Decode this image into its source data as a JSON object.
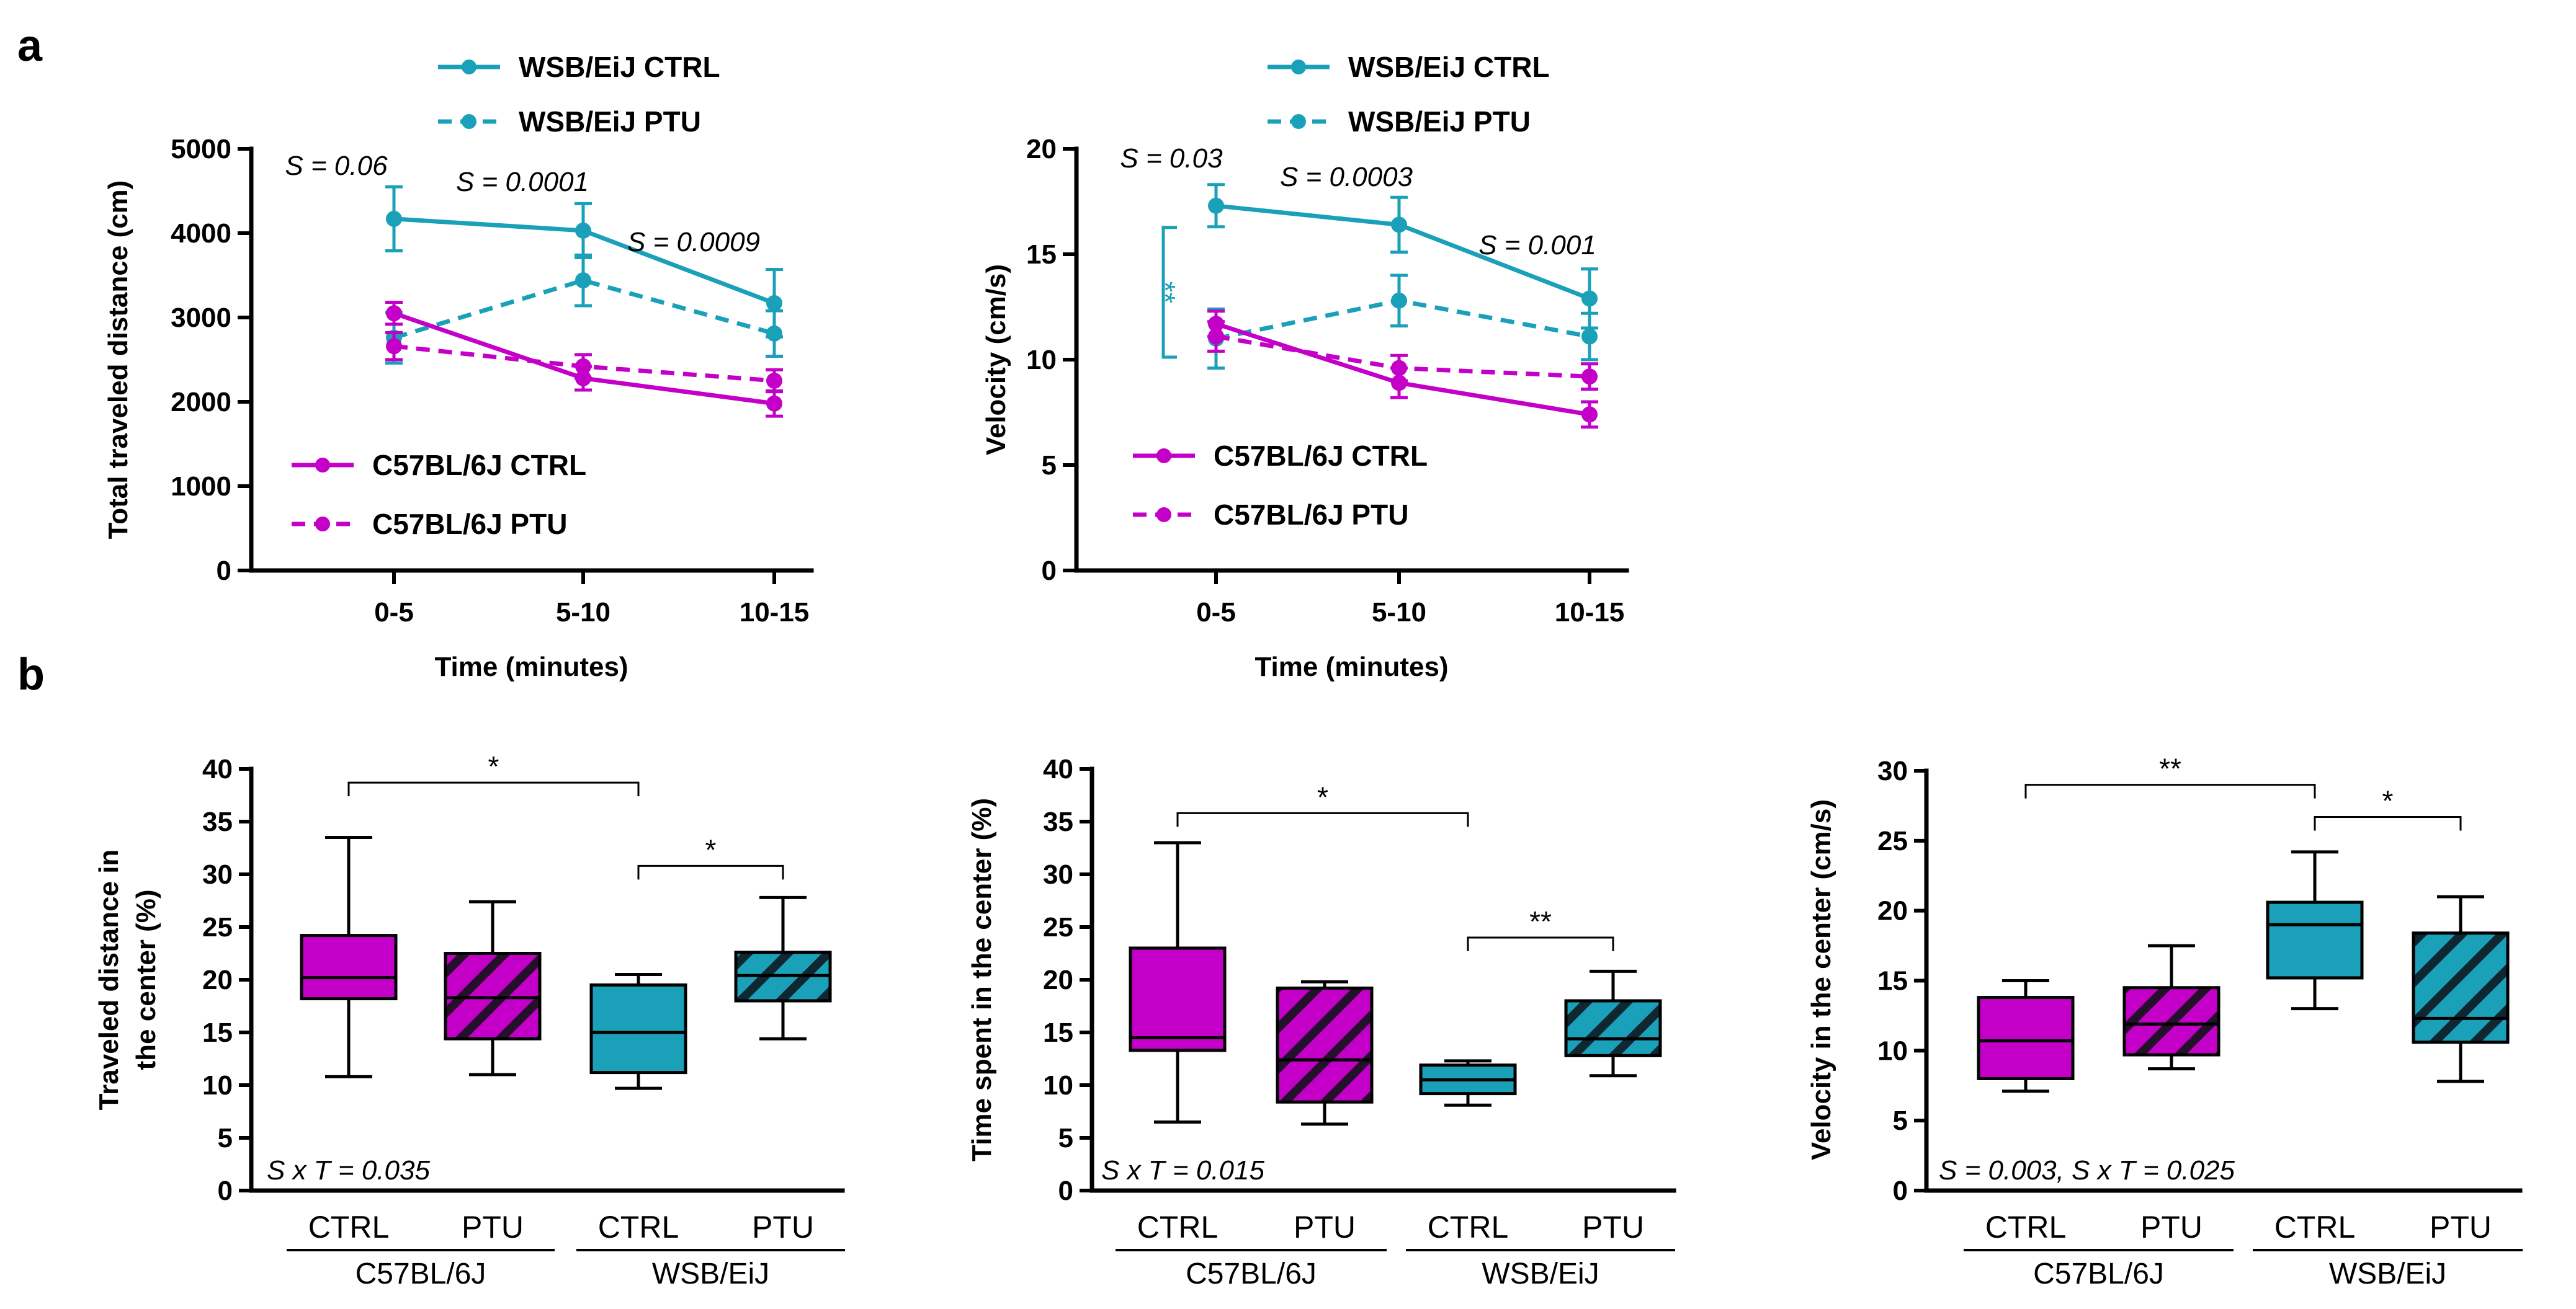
{
  "panel_labels": {
    "a": "a",
    "b": "b"
  },
  "colors": {
    "magenta": "#c400c8",
    "teal": "#1aa0b8",
    "axis": "#000000"
  },
  "chart_data": [
    {
      "id": "a1",
      "type": "line",
      "xlabel": "Time (minutes)",
      "ylabel": "Total traveled distance (cm)",
      "categories": [
        "0-5",
        "5-10",
        "10-15"
      ],
      "ylim": [
        0,
        5000
      ],
      "yticks": [
        0,
        1000,
        2000,
        3000,
        4000,
        5000
      ],
      "series": [
        {
          "name": "WSB/EiJ CTRL",
          "color": "#1aa0b8",
          "dashed": false,
          "values": [
            4170,
            4030,
            3170
          ],
          "errors": [
            380,
            320,
            400
          ]
        },
        {
          "name": "WSB/EiJ PTU",
          "color": "#1aa0b8",
          "dashed": true,
          "values": [
            2760,
            3440,
            2810
          ],
          "errors": [
            300,
            300,
            270
          ]
        },
        {
          "name": "C57BL/6J CTRL",
          "color": "#c400c8",
          "dashed": false,
          "values": [
            3050,
            2280,
            1980
          ],
          "errors": [
            130,
            140,
            150
          ]
        },
        {
          "name": "C57BL/6J PTU",
          "color": "#c400c8",
          "dashed": true,
          "values": [
            2660,
            2420,
            2250
          ],
          "errors": [
            160,
            140,
            130
          ]
        }
      ],
      "annotations": [
        "S = 0.06",
        "S = 0.0001",
        "S = 0.0009"
      ]
    },
    {
      "id": "a2",
      "type": "line",
      "xlabel": "Time (minutes)",
      "ylabel": "Velocity (cm/s)",
      "categories": [
        "0-5",
        "5-10",
        "10-15"
      ],
      "ylim": [
        0,
        20
      ],
      "yticks": [
        0,
        5,
        10,
        15,
        20
      ],
      "series": [
        {
          "name": "WSB/EiJ CTRL",
          "color": "#1aa0b8",
          "dashed": false,
          "values": [
            17.3,
            16.4,
            12.9
          ],
          "errors": [
            1.0,
            1.3,
            1.4
          ]
        },
        {
          "name": "WSB/EiJ PTU",
          "color": "#1aa0b8",
          "dashed": true,
          "values": [
            11.0,
            12.8,
            11.1
          ],
          "errors": [
            1.4,
            1.2,
            1.1
          ]
        },
        {
          "name": "C57BL/6J CTRL",
          "color": "#c400c8",
          "dashed": false,
          "values": [
            11.7,
            8.9,
            7.4
          ],
          "errors": [
            0.6,
            0.7,
            0.6
          ]
        },
        {
          "name": "C57BL/6J PTU",
          "color": "#c400c8",
          "dashed": true,
          "values": [
            11.1,
            9.6,
            9.2
          ],
          "errors": [
            0.7,
            0.6,
            0.6
          ]
        }
      ],
      "annotations": [
        "S = 0.03",
        "S = 0.0003",
        "S = 0.001"
      ],
      "bracket_label": "**"
    },
    {
      "id": "b1",
      "type": "box",
      "ylabel_lines": [
        "Traveled distance in",
        "the center (%)"
      ],
      "ylim": [
        0,
        40
      ],
      "yticks": [
        0,
        5,
        10,
        15,
        20,
        25,
        30,
        35,
        40
      ],
      "categories": [
        "CTRL",
        "PTU",
        "CTRL",
        "PTU"
      ],
      "groups": [
        "C57BL/6J",
        "WSB/EiJ"
      ],
      "boxes": [
        {
          "min": 10.8,
          "q1": 18.2,
          "median": 20.2,
          "q3": 24.2,
          "max": 33.5
        },
        {
          "min": 11.0,
          "q1": 14.4,
          "median": 18.3,
          "q3": 22.5,
          "max": 27.4
        },
        {
          "min": 9.7,
          "q1": 11.2,
          "median": 15.0,
          "q3": 19.5,
          "max": 20.5
        },
        {
          "min": 14.4,
          "q1": 18.0,
          "median": 20.4,
          "q3": 22.6,
          "max": 27.8
        }
      ],
      "significance": [
        {
          "from": 0,
          "to": 2,
          "y": 38.7,
          "label": "*"
        },
        {
          "from": 2,
          "to": 3,
          "y": 30.8,
          "label": "*"
        }
      ],
      "stat_text": "S x T = 0.035"
    },
    {
      "id": "b2",
      "type": "box",
      "ylabel_lines": [
        "Time spent in the center (%)"
      ],
      "ylim": [
        0,
        40
      ],
      "yticks": [
        0,
        5,
        10,
        15,
        20,
        25,
        30,
        35,
        40
      ],
      "categories": [
        "CTRL",
        "PTU",
        "CTRL",
        "PTU"
      ],
      "groups": [
        "C57BL/6J",
        "WSB/EiJ"
      ],
      "boxes": [
        {
          "min": 6.5,
          "q1": 13.3,
          "median": 14.5,
          "q3": 23.0,
          "max": 33.0
        },
        {
          "min": 6.3,
          "q1": 8.4,
          "median": 12.4,
          "q3": 19.2,
          "max": 19.8
        },
        {
          "min": 8.1,
          "q1": 9.2,
          "median": 10.5,
          "q3": 11.9,
          "max": 12.3
        },
        {
          "min": 10.9,
          "q1": 12.8,
          "median": 14.4,
          "q3": 18.0,
          "max": 20.8
        }
      ],
      "significance": [
        {
          "from": 0,
          "to": 2,
          "y": 35.8,
          "label": "*"
        },
        {
          "from": 2,
          "to": 3,
          "y": 24.0,
          "label": "**"
        }
      ],
      "stat_text": "S x T = 0.015"
    },
    {
      "id": "b3",
      "type": "box",
      "ylabel_lines": [
        "Velocity in the center (cm/s)"
      ],
      "ylim": [
        0,
        30
      ],
      "yticks": [
        0,
        5,
        10,
        15,
        20,
        25,
        30
      ],
      "categories": [
        "CTRL",
        "PTU",
        "CTRL",
        "PTU"
      ],
      "groups": [
        "C57BL/6J",
        "WSB/EiJ"
      ],
      "boxes": [
        {
          "min": 7.1,
          "q1": 8.0,
          "median": 10.7,
          "q3": 13.8,
          "max": 15.0
        },
        {
          "min": 8.7,
          "q1": 9.7,
          "median": 11.9,
          "q3": 14.5,
          "max": 17.5
        },
        {
          "min": 13.0,
          "q1": 15.2,
          "median": 19.0,
          "q3": 20.6,
          "max": 24.2
        },
        {
          "min": 7.8,
          "q1": 10.6,
          "median": 12.3,
          "q3": 18.4,
          "max": 21.0
        }
      ],
      "significance": [
        {
          "from": 0,
          "to": 2,
          "y": 29.0,
          "label": "**"
        },
        {
          "from": 2,
          "to": 3,
          "y": 26.7,
          "label": "*"
        }
      ],
      "stat_text": "S = 0.003, S x T = 0.025"
    }
  ]
}
